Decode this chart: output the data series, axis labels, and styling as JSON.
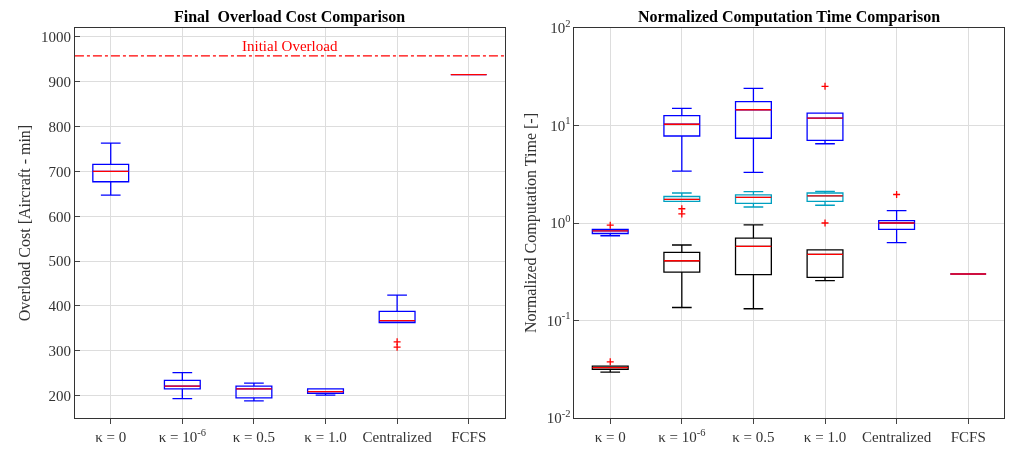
{
  "chart_data": [
    {
      "type": "box",
      "title": "Final  Overload Cost Comparison",
      "ylabel": "Overload Cost [Aircraft - min]",
      "categories": [
        "κ = 0",
        "κ = 10$^{-6}$",
        "κ = 0.5",
        "κ = 1.0",
        "Centralized",
        "FCFS"
      ],
      "ylim": [
        150,
        1020
      ],
      "yticks": [
        200,
        300,
        400,
        500,
        600,
        700,
        800,
        900,
        1000
      ],
      "grid": true,
      "marker": "cross",
      "ref_lines": [
        {
          "axis": "y",
          "value": 958,
          "label": "Initial Overload",
          "color": "#ff0000",
          "line_style": "dashed"
        }
      ],
      "series": [
        {
          "color": "#0000ff",
          "boxes": [
            {
              "low": 647,
              "q1": 677,
              "median": 700,
              "q3": 716,
              "high": 763
            },
            {
              "low": 193,
              "q1": 215,
              "median": 221,
              "q3": 234,
              "high": 251
            },
            {
              "low": 188,
              "q1": 195,
              "median": 215,
              "q3": 221,
              "high": 228
            },
            {
              "low": 201,
              "q1": 205,
              "median": 209,
              "q3": 215,
              "high": 215
            },
            {
              "low": 363,
              "q1": 363,
              "median": 367,
              "q3": 388,
              "high": 424,
              "outliers": [
                320,
                308
              ]
            },
            {
              "low": 916,
              "q1": 916,
              "median": 916,
              "q3": 916,
              "high": 916
            }
          ]
        }
      ]
    },
    {
      "type": "box",
      "title": "Normalized Computation Time Comparison",
      "ylabel": "Normalized Computation Time [-]",
      "categories": [
        "κ = 0",
        "κ = 10$^{-6}$",
        "κ = 0.5",
        "κ = 1.0",
        "Centralized",
        "FCFS"
      ],
      "log": "y",
      "ylim": [
        0.01,
        100
      ],
      "yticks": [
        {
          "value": 0.01,
          "label": "10$^{-2}$"
        },
        {
          "value": 0.1,
          "label": "10$^{-1}$"
        },
        {
          "value": 1,
          "label": "10$^{0}$"
        },
        {
          "value": 10,
          "label": "10$^{1}$"
        },
        {
          "value": 100,
          "label": "10$^{2}$"
        }
      ],
      "grid": true,
      "marker": "cross",
      "series": [
        {
          "color": "#0000ff",
          "boxes": [
            {
              "low": 0.74,
              "q1": 0.78,
              "median": 0.83,
              "q3": 0.86,
              "high": 0.86,
              "outliers": [
                0.95
              ]
            },
            {
              "low": 3.4,
              "q1": 7.8,
              "median": 10.3,
              "q3": 12.6,
              "high": 15.0
            },
            {
              "low": 3.3,
              "q1": 7.4,
              "median": 14.5,
              "q3": 17.6,
              "high": 24.0
            },
            {
              "low": 6.5,
              "q1": 7.05,
              "median": 11.9,
              "q3": 13.4,
              "high": 13.4,
              "outliers": [
                25.2
              ]
            },
            {
              "low": 0.63,
              "q1": 0.86,
              "median": 1.0,
              "q3": 1.06,
              "high": 1.34,
              "outliers": [
                1.96
              ]
            },
            {
              "low": 0.3,
              "q1": 0.3,
              "median": 0.3,
              "q3": 0.3,
              "high": 0.3
            }
          ]
        },
        {
          "color": "#00a0c0",
          "boxes": [
            null,
            {
              "low": 1.67,
              "q1": 1.67,
              "median": 1.75,
              "q3": 1.87,
              "high": 2.03,
              "outliers": [
                1.4,
                1.24
              ]
            },
            {
              "low": 1.46,
              "q1": 1.59,
              "median": 1.83,
              "q3": 1.94,
              "high": 2.1
            },
            {
              "low": 1.52,
              "q1": 1.67,
              "median": 1.9,
              "q3": 2.03,
              "high": 2.11
            },
            null,
            null
          ]
        },
        {
          "color": "#000000",
          "boxes": [
            {
              "low": 0.0296,
              "q1": 0.0315,
              "median": 0.0329,
              "q3": 0.0341,
              "high": 0.0341,
              "outliers": [
                0.0377
              ]
            },
            {
              "low": 0.136,
              "q1": 0.314,
              "median": 0.41,
              "q3": 0.5,
              "high": 0.595
            },
            {
              "low": 0.132,
              "q1": 0.295,
              "median": 0.577,
              "q3": 0.7,
              "high": 0.955
            },
            {
              "low": 0.257,
              "q1": 0.277,
              "median": 0.477,
              "q3": 0.531,
              "high": 0.531,
              "outliers": [
                1.0
              ]
            },
            null,
            null
          ]
        }
      ]
    }
  ]
}
